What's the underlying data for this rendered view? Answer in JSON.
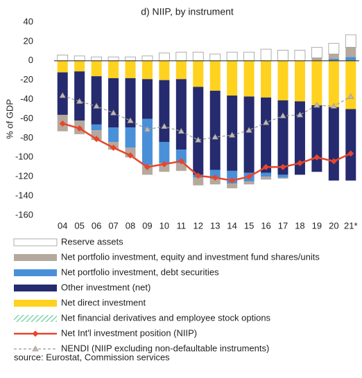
{
  "chart_data": {
    "type": "bar",
    "title": "d) NIIP, by instrument",
    "y_label": "% of GDP",
    "source": "source: Eurostat, Commission services",
    "categories": [
      "04",
      "05",
      "06",
      "07",
      "08",
      "09",
      "10",
      "11",
      "12",
      "13",
      "14",
      "15",
      "16",
      "17",
      "18",
      "19",
      "20",
      "21*"
    ],
    "ylim": [
      -160,
      40
    ],
    "yticks": [
      -160,
      -140,
      -120,
      -100,
      -80,
      -60,
      -40,
      -20,
      0,
      20,
      40
    ],
    "series": [
      {
        "name": "Reserve assets",
        "color": "#ffffff",
        "values": [
          6,
          5,
          4,
          4,
          4,
          5,
          8,
          9,
          9,
          7,
          9,
          9,
          12,
          11,
          11,
          11,
          11,
          13
        ]
      },
      {
        "name": "Net portfolio investment, equity and investment fund shares/units",
        "color": "#b5a89d",
        "values": [
          -17,
          -14,
          -10,
          -8,
          -10,
          -10,
          -9,
          -8,
          -8,
          -6,
          -5,
          -3,
          -3,
          -1,
          0,
          3,
          5,
          10
        ]
      },
      {
        "name": "Net portfolio investment, debt securities",
        "color": "#4a90d9",
        "values": [
          0,
          0,
          -6,
          -15,
          -21,
          -48,
          -22,
          -14,
          -3,
          -9,
          -13,
          -9,
          -4,
          -3,
          0,
          0,
          2,
          4
        ]
      },
      {
        "name": "Other investment (net)",
        "color": "#252b6e",
        "values": [
          -44,
          -51,
          -50,
          -51,
          -51,
          -41,
          -64,
          -73,
          -91,
          -82,
          -78,
          -79,
          -78,
          -77,
          -76,
          -69,
          -76,
          -74
        ]
      },
      {
        "name": "Net direct investment",
        "color": "#ffd21f",
        "values": [
          -12,
          -11,
          -16,
          -18,
          -18,
          -19,
          -20,
          -19,
          -27,
          -31,
          -36,
          -37,
          -38,
          -41,
          -42,
          -46,
          -48,
          -50
        ]
      },
      {
        "name": "Net financial derivatives and employee stock options",
        "color": "#7fd3ae",
        "values": [
          0,
          0,
          0,
          0,
          0,
          0,
          0,
          0,
          0,
          0,
          0,
          0,
          0,
          0,
          0,
          0,
          0,
          0
        ]
      },
      {
        "name": "Net Int'l investment position (NIIP)",
        "type": "line",
        "color": "#e8452c",
        "values": [
          -65,
          -70,
          -81,
          -90,
          -98,
          -110,
          -107,
          -104,
          -119,
          -121,
          -124,
          -120,
          -110,
          -110,
          -106,
          -100,
          -104,
          -96
        ]
      },
      {
        "name": "NENDI (NIIP excluding non-defaultable instruments)",
        "type": "line",
        "color": "#9a9a9a",
        "values": [
          -36,
          -42,
          -47,
          -54,
          -62,
          -71,
          -68,
          -73,
          -82,
          -79,
          -77,
          -72,
          -64,
          -57,
          -56,
          -46,
          -47,
          -37
        ]
      }
    ]
  }
}
